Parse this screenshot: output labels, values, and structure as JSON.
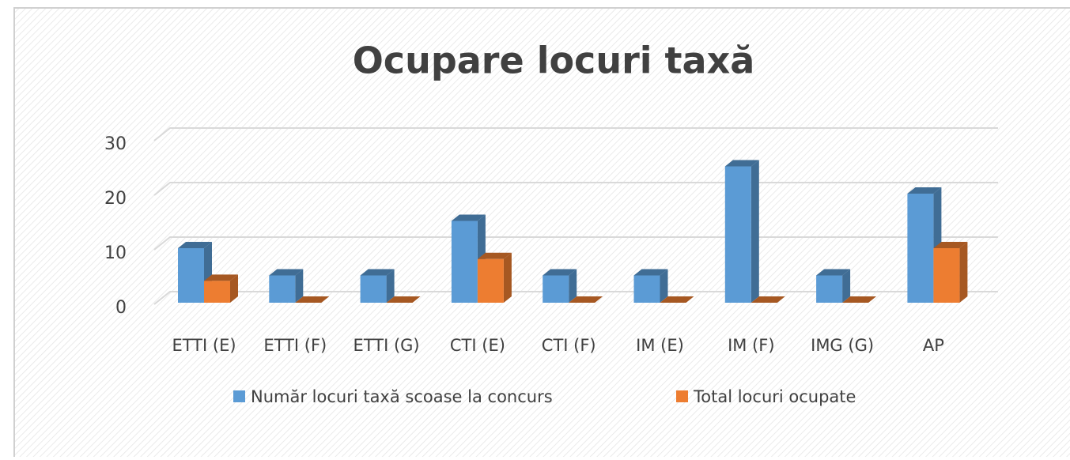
{
  "chart_data": {
    "type": "bar3d",
    "title": "Ocupare locuri taxă",
    "categories": [
      "ETTI (E)",
      "ETTI (F)",
      "ETTI (G)",
      "CTI (E)",
      "CTI (F)",
      "IM (E)",
      "IM (F)",
      "IMG (G)",
      "AP"
    ],
    "series": [
      {
        "name": "Număr locuri taxă scoase la concurs",
        "color": "#5b9bd5",
        "values": [
          10,
          5,
          5,
          15,
          5,
          5,
          25,
          5,
          20
        ]
      },
      {
        "name": "Total locuri ocupate",
        "color": "#ed7d31",
        "values": [
          4,
          0,
          0,
          8,
          0,
          0,
          0,
          0,
          10
        ]
      }
    ],
    "ylim": [
      0,
      30
    ],
    "yticks": [
      0,
      10,
      20,
      30
    ],
    "grid": true,
    "legend": "bottom"
  }
}
